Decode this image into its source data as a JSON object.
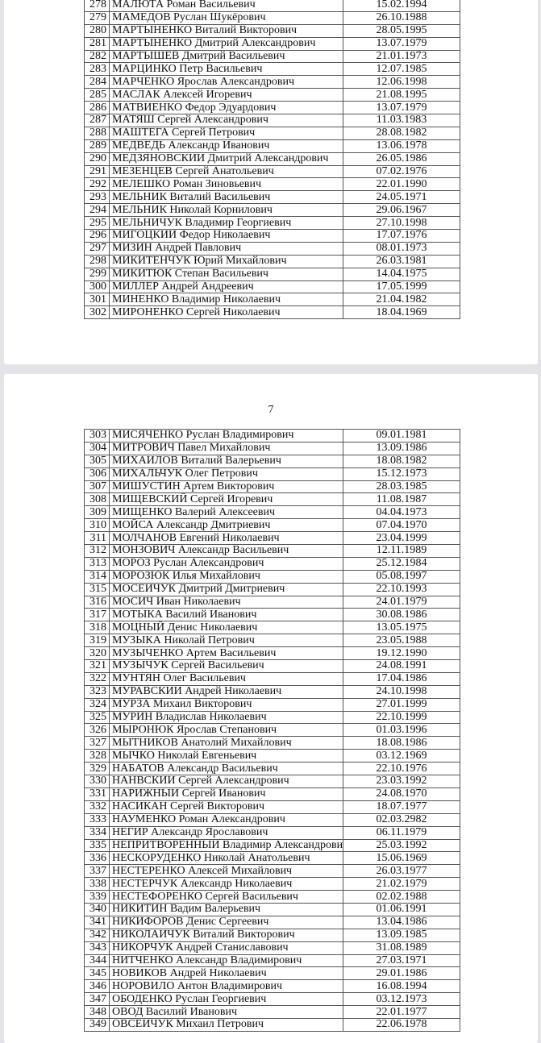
{
  "page_number": "7",
  "page1_rows": [
    [
      "278",
      "МАЛЮТА Роман Васильевич",
      "15.02.1994"
    ],
    [
      "279",
      "МАМЕДОВ Руслан Шукёрович",
      "26.10.1988"
    ],
    [
      "280",
      "МАРТЫНЕНКО Виталий Викторович",
      "28.05.1995"
    ],
    [
      "281",
      "МАРТЫНЕНКО Дмитрий Александрович",
      "13.07.1979"
    ],
    [
      "282",
      "МАРТЫШЕВ Дмитрий Васильевич",
      "21.01.1973"
    ],
    [
      "283",
      "МАРЦИНКО Петр Васильевич",
      "12.07.1985"
    ],
    [
      "284",
      "МАРЧЕНКО Ярослав Александрович",
      "12.06.1998"
    ],
    [
      "285",
      "МАСЛАК Алексей Игоревич",
      "21.08.1995"
    ],
    [
      "286",
      "МАТВИЕНКО Федор Эдуардович",
      "13.07.1979"
    ],
    [
      "287",
      "МАТЯШ Сергей Александрович",
      "11.03.1983"
    ],
    [
      "288",
      "МАШТЕГА Сергей Петрович",
      "28.08.1982"
    ],
    [
      "289",
      "МЕДВЕДЬ Александр Иванович",
      "13.06.1978"
    ],
    [
      "290",
      "МЕДЗЯНОВСКИЙ Дмитрий Александрович",
      "26.05.1986"
    ],
    [
      "291",
      "МЕЗЕНЦЕВ Сергей Анатольевич",
      "07.02.1976"
    ],
    [
      "292",
      "МЕЛЕШКО Роман Зиновьевич",
      "22.01.1990"
    ],
    [
      "293",
      "МЕЛЬНИК Виталий Васильевич",
      "24.05.1971"
    ],
    [
      "294",
      "МЕЛЬНИК Николай Корнилович",
      "29.06.1967"
    ],
    [
      "295",
      "МЕЛЬНИЧУК Владимир Георгиевич",
      "27.10.1998"
    ],
    [
      "296",
      "МИГОЦКИЙ Федор Николаевич",
      "17.07.1976"
    ],
    [
      "297",
      "МИЗИН Андрей Павлович",
      "08.01.1973"
    ],
    [
      "298",
      "МИКИТЕНЧУК Юрий Михайлович",
      "26.03.1981"
    ],
    [
      "299",
      "МИКИТЮК Степан Васильевич",
      "14.04.1975"
    ],
    [
      "300",
      "МИЛЛЕР Андрей Андреевич",
      "17.05.1999"
    ],
    [
      "301",
      "МИНЕНКО Владимир Николаевич",
      "21.04.1982"
    ],
    [
      "302",
      "МИРОНЕНКО Сергей Николаевич",
      "18.04.1969"
    ]
  ],
  "page2_rows": [
    [
      "303",
      "МИСЯЧЕНКО Руслан Владимирович",
      "09.01.1981"
    ],
    [
      "304",
      "МИТРОВИЧ Павел Михайлович",
      "13.09.1986"
    ],
    [
      "305",
      "МИХАЙЛОВ Виталий Валерьевич",
      "18.08.1982"
    ],
    [
      "306",
      "МИХАЛЬЧУК Олег Петрович",
      "15.12.1973"
    ],
    [
      "307",
      "МИШУСТИН Артем Викторович",
      "28.03.1985"
    ],
    [
      "308",
      "МИЩЕВСКИЙ Сергей Игоревич",
      "11.08.1987"
    ],
    [
      "309",
      "МИЩЕНКО Валерий Алексеевич",
      "04.04.1973"
    ],
    [
      "310",
      "МОЙСА Александр Дмитриевич",
      "07.04.1970"
    ],
    [
      "311",
      "МОЛЧАНОВ Евгений Николаевич",
      "23.04.1999"
    ],
    [
      "312",
      "МОНЗОВИЧ Александр Васильевич",
      "12.11.1989"
    ],
    [
      "313",
      "МОРОЗ Руслан Александрович",
      "25.12.1984"
    ],
    [
      "314",
      "МОРОЗЮК Илья Михайлович",
      "05.08.1997"
    ],
    [
      "315",
      "МОСЕЙЧУК Дмитрий Дмитриевич",
      "22.10.1993"
    ],
    [
      "316",
      "МОСИЧ Иван Николаевич",
      "24.01.1979"
    ],
    [
      "317",
      "МОТЫКА Василий Иванович",
      "30.08.1986"
    ],
    [
      "318",
      "МОЦНЫЙ Денис Николаевич",
      "13.05.1975"
    ],
    [
      "319",
      "МУЗЫКА Николай Петрович",
      "23.05.1988"
    ],
    [
      "320",
      "МУЗЫЧЕНКО Артем Васильевич",
      "19.12.1990"
    ],
    [
      "321",
      "МУЗЫЧУК Сергей Васильевич",
      "24.08.1991"
    ],
    [
      "322",
      "МУНТЯН Олег Васильевич",
      "17.04.1986"
    ],
    [
      "323",
      "МУРАВСКИЙ Андрей Николаевич",
      "24.10.1998"
    ],
    [
      "324",
      "МУРЗА Михаил Викторович",
      "27.01.1999"
    ],
    [
      "325",
      "МУРИН Владислав Николаевич",
      "22.10.1999"
    ],
    [
      "326",
      "МЫРОНЮК Ярослав Степанович",
      "01.03.1996"
    ],
    [
      "327",
      "МЫТНИКОВ Анатолий Михайлович",
      "18.08.1986"
    ],
    [
      "328",
      "МЫЧКО Николай Евгеньевич",
      "03.12.1969"
    ],
    [
      "329",
      "НАБАТОВ Александр Васильевич",
      "22.10.1976"
    ],
    [
      "330",
      "НАНВСКИЙ Сергей Александрович",
      "23.03.1992"
    ],
    [
      "331",
      "НАРИЖНЫЙ Сергей Иванович",
      "24.08.1970"
    ],
    [
      "332",
      "НАСИКАН Сергей Викторович",
      "18.07.1977"
    ],
    [
      "333",
      "НАУМЕНКО Роман Александрович",
      "02.03.2982"
    ],
    [
      "334",
      "НЕГИР Александр Ярославович",
      "06.11.1979"
    ],
    [
      "335",
      "НЕПРИТВОРЕННЫЙ Владимир Александрович",
      "25.03.1992"
    ],
    [
      "336",
      "НЕСКОРУДЕНКО Николай Анатольевич",
      "15.06.1969"
    ],
    [
      "337",
      "НЕСТЕРЕНКО Алексей Михайлович",
      "26.03.1977"
    ],
    [
      "338",
      "НЕСТЕРЧУК Александр Николаевич",
      "21.02.1979"
    ],
    [
      "339",
      "НЕСТЕФОРЕНКО Сергей Васильевич",
      "02.02.1988"
    ],
    [
      "340",
      "НИКИТИН Вадим Валерьевич",
      "01.06.1991"
    ],
    [
      "341",
      "НИКИФОРОВ Денис Сергеевич",
      "13.04.1986"
    ],
    [
      "342",
      "НИКОЛАЙЧУК Виталий Викторович",
      "13.09.1985"
    ],
    [
      "343",
      "НИКОРЧУК Андрей Станиславович",
      "31.08.1989"
    ],
    [
      "344",
      "НИТЧЕНКО Александр Владимирович",
      "27.03.1971"
    ],
    [
      "345",
      "НОВИКОВ Андрей Николаевич",
      "29.01.1986"
    ],
    [
      "346",
      "НОРОВИЛО Антон Владимирович",
      "16.08.1994"
    ],
    [
      "347",
      "ОБОДЕНКО Руслан Георгиевич",
      "03.12.1973"
    ],
    [
      "348",
      "ОВОД Василий Иванович",
      "22.01.1977"
    ],
    [
      "349",
      "ОВСЕЙЧУК Михаил Петрович",
      "22.06.1978"
    ]
  ]
}
